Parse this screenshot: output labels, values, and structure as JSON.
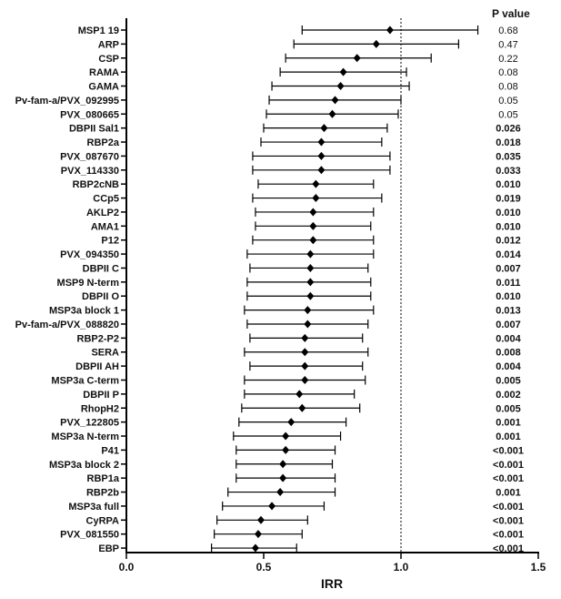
{
  "chart_data": {
    "type": "forest",
    "xlabel": "IRR",
    "xlim": [
      0.0,
      1.5
    ],
    "xticks": [
      "0.0",
      "0.5",
      "1.0",
      "1.5"
    ],
    "reference_line": 1.0,
    "pvalue_header": "P value",
    "rows": [
      {
        "label": "MSP1 19",
        "irr": 0.96,
        "lo": 0.64,
        "hi": 1.28,
        "p": "0.68"
      },
      {
        "label": "ARP",
        "irr": 0.91,
        "lo": 0.61,
        "hi": 1.21,
        "p": "0.47"
      },
      {
        "label": "CSP",
        "irr": 0.84,
        "lo": 0.58,
        "hi": 1.11,
        "p": "0.22"
      },
      {
        "label": "RAMA",
        "irr": 0.79,
        "lo": 0.56,
        "hi": 1.02,
        "p": "0.08"
      },
      {
        "label": "GAMA",
        "irr": 0.78,
        "lo": 0.53,
        "hi": 1.03,
        "p": "0.08"
      },
      {
        "label": "Pv-fam-a/PVX_092995",
        "irr": 0.76,
        "lo": 0.52,
        "hi": 1.0,
        "p": "0.05"
      },
      {
        "label": "PVX_080665",
        "irr": 0.75,
        "lo": 0.51,
        "hi": 0.99,
        "p": "0.05"
      },
      {
        "label": "DBPII Sal1",
        "irr": 0.72,
        "lo": 0.5,
        "hi": 0.95,
        "p": "0.026"
      },
      {
        "label": "RBP2a",
        "irr": 0.71,
        "lo": 0.49,
        "hi": 0.93,
        "p": "0.018"
      },
      {
        "label": "PVX_087670",
        "irr": 0.71,
        "lo": 0.46,
        "hi": 0.96,
        "p": "0.035"
      },
      {
        "label": "PVX_114330",
        "irr": 0.71,
        "lo": 0.46,
        "hi": 0.96,
        "p": "0.033"
      },
      {
        "label": "RBP2cNB",
        "irr": 0.69,
        "lo": 0.48,
        "hi": 0.9,
        "p": "0.010"
      },
      {
        "label": "CCp5",
        "irr": 0.69,
        "lo": 0.46,
        "hi": 0.93,
        "p": "0.019"
      },
      {
        "label": "AKLP2",
        "irr": 0.68,
        "lo": 0.47,
        "hi": 0.9,
        "p": "0.010"
      },
      {
        "label": "AMA1",
        "irr": 0.68,
        "lo": 0.47,
        "hi": 0.89,
        "p": "0.010"
      },
      {
        "label": "P12",
        "irr": 0.68,
        "lo": 0.46,
        "hi": 0.9,
        "p": "0.012"
      },
      {
        "label": "PVX_094350",
        "irr": 0.67,
        "lo": 0.44,
        "hi": 0.9,
        "p": "0.014"
      },
      {
        "label": "DBPII C",
        "irr": 0.67,
        "lo": 0.45,
        "hi": 0.88,
        "p": "0.007"
      },
      {
        "label": "MSP9 N-term",
        "irr": 0.67,
        "lo": 0.44,
        "hi": 0.89,
        "p": "0.011"
      },
      {
        "label": "DBPII O",
        "irr": 0.67,
        "lo": 0.44,
        "hi": 0.89,
        "p": "0.010"
      },
      {
        "label": "MSP3a block 1",
        "irr": 0.66,
        "lo": 0.43,
        "hi": 0.9,
        "p": "0.013"
      },
      {
        "label": "Pv-fam-a/PVX_088820",
        "irr": 0.66,
        "lo": 0.44,
        "hi": 0.88,
        "p": "0.007"
      },
      {
        "label": "RBP2-P2",
        "irr": 0.65,
        "lo": 0.45,
        "hi": 0.86,
        "p": "0.004"
      },
      {
        "label": "SERA",
        "irr": 0.65,
        "lo": 0.43,
        "hi": 0.88,
        "p": "0.008"
      },
      {
        "label": "DBPII AH",
        "irr": 0.65,
        "lo": 0.45,
        "hi": 0.86,
        "p": "0.004"
      },
      {
        "label": "MSP3a C-term",
        "irr": 0.65,
        "lo": 0.43,
        "hi": 0.87,
        "p": "0.005"
      },
      {
        "label": "DBPII P",
        "irr": 0.63,
        "lo": 0.43,
        "hi": 0.83,
        "p": "0.002"
      },
      {
        "label": "RhopH2",
        "irr": 0.64,
        "lo": 0.42,
        "hi": 0.85,
        "p": "0.005"
      },
      {
        "label": "PVX_122805",
        "irr": 0.6,
        "lo": 0.41,
        "hi": 0.8,
        "p": "0.001"
      },
      {
        "label": "MSP3a N-term",
        "irr": 0.58,
        "lo": 0.39,
        "hi": 0.78,
        "p": "0.001"
      },
      {
        "label": "P41",
        "irr": 0.58,
        "lo": 0.4,
        "hi": 0.76,
        "p": "<0.001"
      },
      {
        "label": "MSP3a block 2",
        "irr": 0.57,
        "lo": 0.4,
        "hi": 0.75,
        "p": "<0.001"
      },
      {
        "label": "RBP1a",
        "irr": 0.57,
        "lo": 0.4,
        "hi": 0.76,
        "p": "<0.001"
      },
      {
        "label": "RBP2b",
        "irr": 0.56,
        "lo": 0.37,
        "hi": 0.76,
        "p": "0.001"
      },
      {
        "label": "MSP3a full",
        "irr": 0.53,
        "lo": 0.35,
        "hi": 0.72,
        "p": "<0.001"
      },
      {
        "label": "CyRPA",
        "irr": 0.49,
        "lo": 0.33,
        "hi": 0.66,
        "p": "<0.001"
      },
      {
        "label": "PVX_081550",
        "irr": 0.48,
        "lo": 0.32,
        "hi": 0.64,
        "p": "<0.001"
      },
      {
        "label": "EBP",
        "irr": 0.47,
        "lo": 0.31,
        "hi": 0.62,
        "p": "<0.001"
      }
    ]
  }
}
